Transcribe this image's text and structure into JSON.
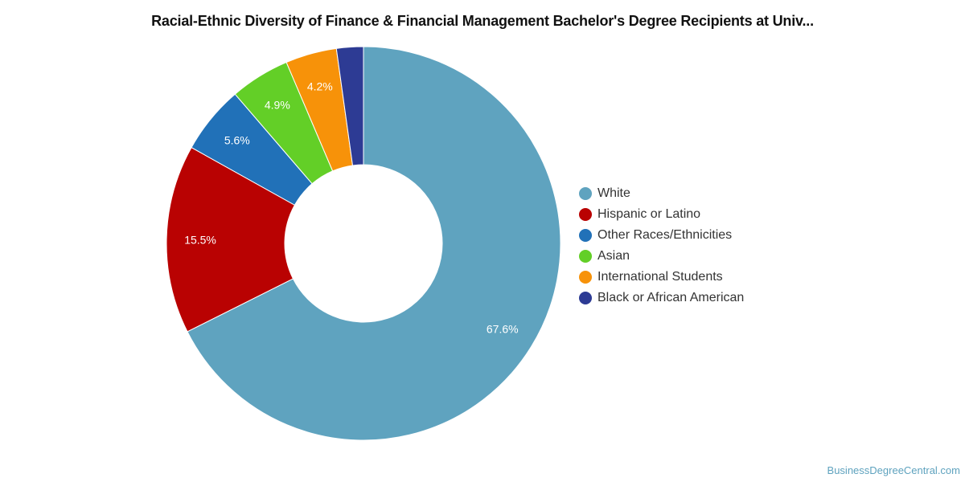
{
  "chart_data": {
    "type": "pie",
    "title": "Racial-Ethnic Diversity of Finance & Financial Management Bachelor's Degree Recipients at Univ...",
    "donut": true,
    "legend_position": "right",
    "series": [
      {
        "name": "White",
        "value": 67.6,
        "label": "67.6%",
        "color": "#5fa3bf"
      },
      {
        "name": "Hispanic or Latino",
        "value": 15.5,
        "label": "15.5%",
        "color": "#b90202"
      },
      {
        "name": "Other Races/Ethnicities",
        "value": 5.6,
        "label": "5.6%",
        "color": "#2171b8"
      },
      {
        "name": "Asian",
        "value": 4.9,
        "label": "4.9%",
        "color": "#63cf27"
      },
      {
        "name": "International Students",
        "value": 4.2,
        "label": "4.2%",
        "color": "#f79209"
      },
      {
        "name": "Black or African American",
        "value": 2.2,
        "label": "",
        "color": "#2d3b94"
      }
    ]
  },
  "watermark": "BusinessDegreeCentral.com"
}
